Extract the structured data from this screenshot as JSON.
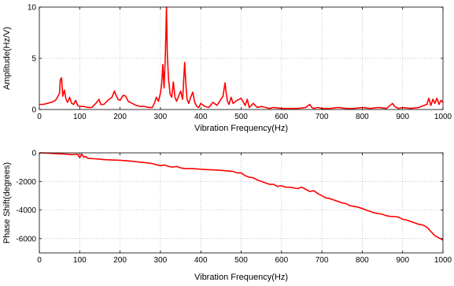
{
  "chart_data": [
    {
      "type": "line",
      "xlabel": "Vibration Frequency(Hz)",
      "ylabel": "Amplitude(Hz/V)",
      "xlim": [
        0,
        1000
      ],
      "ylim": [
        0,
        10
      ],
      "xticks": [
        0,
        100,
        200,
        300,
        400,
        500,
        600,
        700,
        800,
        900,
        1000
      ],
      "yticks": [
        0,
        5,
        10
      ],
      "grid": true,
      "color": "#ff0000",
      "series": [
        {
          "x": [
            0,
            10,
            20,
            30,
            40,
            45,
            50,
            52,
            55,
            58,
            62,
            66,
            70,
            75,
            80,
            85,
            90,
            95,
            100,
            110,
            120,
            130,
            140,
            148,
            152,
            160,
            170,
            180,
            186,
            190,
            195,
            200,
            208,
            214,
            220,
            230,
            240,
            250,
            260,
            270,
            280,
            285,
            290,
            295,
            300,
            303,
            306,
            309,
            312,
            315,
            317,
            320,
            324,
            328,
            332,
            336,
            340,
            345,
            350,
            355,
            360,
            363,
            366,
            370,
            375,
            380,
            385,
            390,
            395,
            400,
            410,
            420,
            430,
            440,
            450,
            455,
            460,
            463,
            466,
            470,
            475,
            480,
            490,
            500,
            510,
            515,
            520,
            530,
            540,
            550,
            560,
            570,
            580,
            600,
            620,
            640,
            660,
            670,
            675,
            680,
            690,
            700,
            720,
            740,
            760,
            780,
            800,
            820,
            840,
            860,
            875,
            880,
            890,
            900,
            920,
            940,
            960,
            965,
            970,
            975,
            980,
            985,
            990,
            995,
            1000
          ],
          "y": [
            0.5,
            0.5,
            0.6,
            0.7,
            0.9,
            1.2,
            1.6,
            2.9,
            3.1,
            1.3,
            1.9,
            1.0,
            0.7,
            1.2,
            0.6,
            0.5,
            0.9,
            0.4,
            0.3,
            0.3,
            0.2,
            0.2,
            0.6,
            1.0,
            0.5,
            0.5,
            0.9,
            1.2,
            1.8,
            1.4,
            1.0,
            0.9,
            1.4,
            1.3,
            0.8,
            0.6,
            0.4,
            0.3,
            0.3,
            0.2,
            0.2,
            0.6,
            1.2,
            0.8,
            1.6,
            2.5,
            4.4,
            2.1,
            5.0,
            10.0,
            5.5,
            3.0,
            1.5,
            1.2,
            2.7,
            1.2,
            0.8,
            1.3,
            1.8,
            1.0,
            4.6,
            2.5,
            1.0,
            0.6,
            1.2,
            1.7,
            0.7,
            0.3,
            0.2,
            0.6,
            0.3,
            0.2,
            0.7,
            0.4,
            1.0,
            1.3,
            2.6,
            1.6,
            0.8,
            0.5,
            1.2,
            0.6,
            0.9,
            1.1,
            0.4,
            1.0,
            0.2,
            0.6,
            0.2,
            0.3,
            0.2,
            0.1,
            0.2,
            0.1,
            0.1,
            0.1,
            0.2,
            0.5,
            0.2,
            0.1,
            0.2,
            0.1,
            0.1,
            0.2,
            0.1,
            0.1,
            0.2,
            0.1,
            0.2,
            0.1,
            0.6,
            0.3,
            0.1,
            0.2,
            0.1,
            0.2,
            0.5,
            1.1,
            0.4,
            1.0,
            0.6,
            1.1,
            0.5,
            0.9,
            0.7
          ]
        }
      ]
    },
    {
      "type": "line",
      "xlabel": "Vibration Frequency(Hz)",
      "ylabel": "Phase Shift(degrees)",
      "xlim": [
        0,
        1000
      ],
      "ylim": [
        -7000,
        0
      ],
      "xticks": [
        0,
        100,
        200,
        300,
        400,
        500,
        600,
        700,
        800,
        900,
        1000
      ],
      "yticks": [
        0,
        -2000,
        -4000,
        -6000
      ],
      "grid": true,
      "color": "#ff0000",
      "series": [
        {
          "x": [
            0,
            20,
            40,
            60,
            80,
            95,
            100,
            105,
            110,
            115,
            120,
            140,
            160,
            180,
            200,
            220,
            240,
            260,
            280,
            300,
            310,
            320,
            330,
            340,
            350,
            360,
            380,
            400,
            420,
            440,
            460,
            480,
            490,
            500,
            510,
            520,
            530,
            540,
            550,
            560,
            570,
            580,
            590,
            600,
            610,
            620,
            630,
            640,
            650,
            660,
            670,
            680,
            690,
            700,
            710,
            720,
            730,
            740,
            750,
            760,
            770,
            780,
            790,
            800,
            810,
            820,
            830,
            840,
            850,
            860,
            870,
            880,
            890,
            900,
            910,
            920,
            930,
            940,
            950,
            960,
            970,
            980,
            990,
            1000
          ],
          "y": [
            0,
            -20,
            -50,
            -80,
            -120,
            -100,
            -350,
            -80,
            -300,
            -250,
            -380,
            -420,
            -470,
            -500,
            -520,
            -560,
            -620,
            -680,
            -750,
            -900,
            -850,
            -950,
            -1000,
            -950,
            -1050,
            -1100,
            -1100,
            -1150,
            -1180,
            -1200,
            -1250,
            -1300,
            -1400,
            -1400,
            -1600,
            -1700,
            -1750,
            -1900,
            -2000,
            -2100,
            -2200,
            -2200,
            -2350,
            -2300,
            -2400,
            -2400,
            -2450,
            -2500,
            -2400,
            -2550,
            -2700,
            -2650,
            -2850,
            -3000,
            -3150,
            -3200,
            -3300,
            -3400,
            -3500,
            -3550,
            -3700,
            -3750,
            -3800,
            -3900,
            -4000,
            -4100,
            -4200,
            -4250,
            -4300,
            -4400,
            -4450,
            -4450,
            -4500,
            -4650,
            -4700,
            -4800,
            -4900,
            -5000,
            -5050,
            -5200,
            -5500,
            -5800,
            -5950,
            -6100
          ]
        }
      ]
    }
  ]
}
